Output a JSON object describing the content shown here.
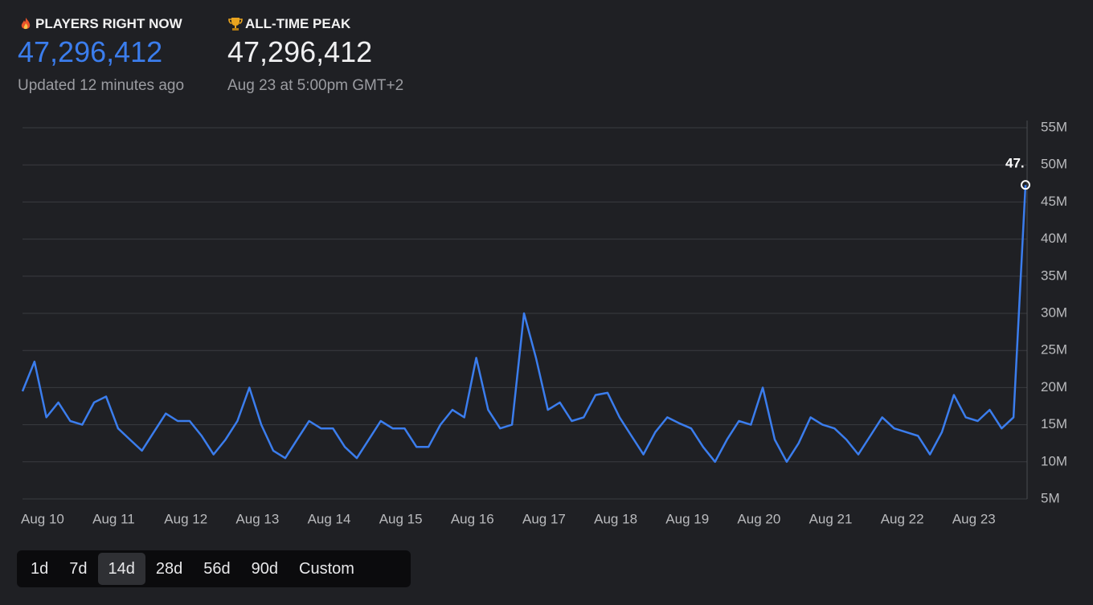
{
  "stats": [
    {
      "label": "PLAYERS RIGHT NOW",
      "value": "47,296,412",
      "note": "Updated 12 minutes ago"
    },
    {
      "label": "ALL-TIME PEAK",
      "value": "47,296,412",
      "note": "Aug 23 at 5:00pm GMT+2"
    }
  ],
  "chart_data": {
    "type": "line",
    "categories": [
      "Aug 10",
      null,
      null,
      null,
      null,
      null,
      "Aug 11",
      null,
      null,
      null,
      null,
      null,
      "Aug 12",
      null,
      null,
      null,
      null,
      null,
      "Aug 13",
      null,
      null,
      null,
      null,
      null,
      "Aug 14",
      null,
      null,
      null,
      null,
      null,
      "Aug 15",
      null,
      null,
      null,
      null,
      null,
      "Aug 16",
      null,
      null,
      null,
      null,
      null,
      "Aug 17",
      null,
      null,
      null,
      null,
      null,
      "Aug 18",
      null,
      null,
      null,
      null,
      null,
      "Aug 19",
      null,
      null,
      null,
      null,
      null,
      "Aug 20",
      null,
      null,
      null,
      null,
      null,
      "Aug 21",
      null,
      null,
      null,
      null,
      null,
      "Aug 22",
      null,
      null,
      null,
      null,
      null,
      "Aug 23",
      null,
      null,
      null,
      null,
      null,
      null
    ],
    "series": [
      {
        "color": "#3b7ded",
        "values": [
          19.5,
          23.5,
          16,
          18,
          15.5,
          15,
          18,
          18.8,
          14.5,
          13,
          11.5,
          14,
          16.5,
          15.5,
          15.5,
          13.5,
          11,
          13,
          15.5,
          20,
          15,
          11.5,
          10.5,
          13,
          15.5,
          14.5,
          14.5,
          12,
          10.5,
          13,
          15.5,
          14.5,
          14.5,
          12,
          12,
          15,
          17,
          16,
          24,
          17,
          14.5,
          15,
          30,
          24,
          17,
          18,
          15.5,
          16,
          19,
          19.3,
          16,
          13.5,
          11,
          14,
          16,
          15.2,
          14.5,
          12,
          10,
          13,
          15.5,
          15,
          20,
          13,
          10,
          12.5,
          16,
          15,
          14.5,
          13,
          11,
          13.5,
          16,
          14.5,
          14,
          13.5,
          11,
          14,
          19,
          16,
          15.5,
          17,
          14.5,
          16,
          47.296412
        ]
      }
    ],
    "annotation": "47.",
    "ylim": [
      5,
      55
    ],
    "yticks": [
      {
        "value": 5,
        "label": "5M"
      },
      {
        "value": 10,
        "label": "10M"
      },
      {
        "value": 15,
        "label": "15M"
      },
      {
        "value": 20,
        "label": "20M"
      },
      {
        "value": 25,
        "label": "25M"
      },
      {
        "value": 30,
        "label": "30M"
      },
      {
        "value": 35,
        "label": "35M"
      },
      {
        "value": 40,
        "label": "40M"
      },
      {
        "value": 45,
        "label": "45M"
      },
      {
        "value": 50,
        "label": "50M"
      },
      {
        "value": 55,
        "label": "55M"
      }
    ],
    "grid": true
  },
  "range": {
    "options": [
      "1d",
      "7d",
      "14d",
      "28d",
      "56d",
      "90d",
      "Custom"
    ],
    "selected": "14d"
  }
}
